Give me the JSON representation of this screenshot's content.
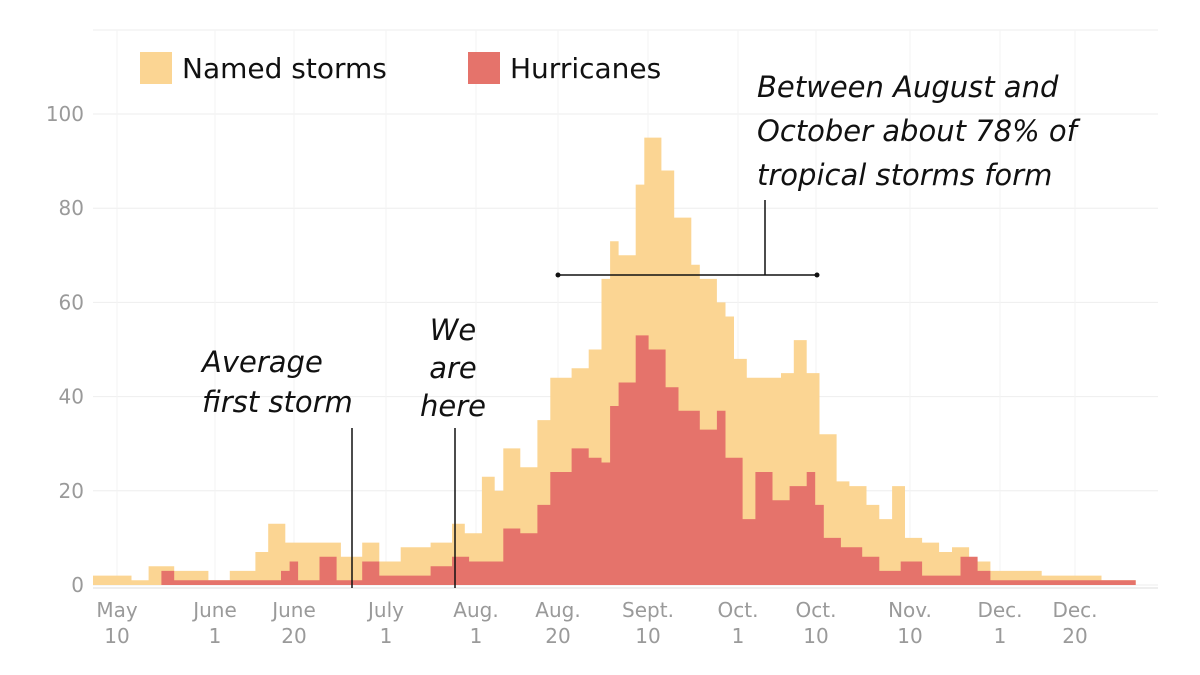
{
  "chart_data": {
    "type": "area",
    "title": "",
    "xlabel": "",
    "ylabel": "",
    "ylim": [
      0,
      100
    ],
    "yticks": [
      0,
      20,
      40,
      60,
      80,
      100
    ],
    "grid": true,
    "legend_placement": "top-left",
    "xtick_labels": [
      [
        "May",
        "10"
      ],
      [
        "June",
        "1"
      ],
      [
        "June",
        "20"
      ],
      [
        "July",
        "1"
      ],
      [
        "Aug.",
        "1"
      ],
      [
        "Aug.",
        "20"
      ],
      [
        "Sept.",
        "10"
      ],
      [
        "Oct.",
        "1"
      ],
      [
        "Oct.",
        "10"
      ],
      [
        "Nov.",
        "10"
      ],
      [
        "Dec.",
        "1"
      ],
      [
        "Dec.",
        "20"
      ]
    ],
    "series": [
      {
        "name": "Named storms",
        "color": "#fbd593",
        "points": [
          [
            "May 1",
            2
          ],
          [
            "May 10",
            1
          ],
          [
            "May 14",
            4
          ],
          [
            "May 20",
            3
          ],
          [
            "May 28",
            1
          ],
          [
            "Jun 2",
            3
          ],
          [
            "Jun 8",
            7
          ],
          [
            "Jun 11",
            13
          ],
          [
            "Jun 15",
            9
          ],
          [
            "Jun 23",
            9
          ],
          [
            "Jun 28",
            6
          ],
          [
            "Jul 3",
            9
          ],
          [
            "Jul 7",
            5
          ],
          [
            "Jul 12",
            8
          ],
          [
            "Jul 19",
            9
          ],
          [
            "Jul 24",
            13
          ],
          [
            "Jul 27",
            11
          ],
          [
            "Jul 31",
            23
          ],
          [
            "Aug 3",
            20
          ],
          [
            "Aug 5",
            29
          ],
          [
            "Aug 9",
            25
          ],
          [
            "Aug 13",
            35
          ],
          [
            "Aug 16",
            44
          ],
          [
            "Aug 21",
            46
          ],
          [
            "Aug 25",
            50
          ],
          [
            "Aug 28",
            65
          ],
          [
            "Aug 30",
            73
          ],
          [
            "Sep 1",
            70
          ],
          [
            "Sep 5",
            85
          ],
          [
            "Sep 7",
            95
          ],
          [
            "Sep 11",
            88
          ],
          [
            "Sep 14",
            78
          ],
          [
            "Sep 18",
            68
          ],
          [
            "Sep 20",
            65
          ],
          [
            "Sep 24",
            60
          ],
          [
            "Sep 26",
            57
          ],
          [
            "Sep 28",
            48
          ],
          [
            "Oct 1",
            44
          ],
          [
            "Oct 4",
            44
          ],
          [
            "Oct 9",
            45
          ],
          [
            "Oct 12",
            52
          ],
          [
            "Oct 15",
            45
          ],
          [
            "Oct 18",
            32
          ],
          [
            "Oct 22",
            22
          ],
          [
            "Oct 25",
            21
          ],
          [
            "Oct 29",
            17
          ],
          [
            "Nov 1",
            14
          ],
          [
            "Nov 4",
            21
          ],
          [
            "Nov 7",
            10
          ],
          [
            "Nov 11",
            9
          ],
          [
            "Nov 15",
            7
          ],
          [
            "Nov 18",
            8
          ],
          [
            "Nov 22",
            5
          ],
          [
            "Nov 27",
            3
          ],
          [
            "Dec 2",
            3
          ],
          [
            "Dec 9",
            2
          ],
          [
            "Dec 16",
            2
          ],
          [
            "Dec 23",
            1
          ],
          [
            "Dec 30",
            1
          ],
          [
            "Dec 31",
            0
          ]
        ]
      },
      {
        "name": "Hurricanes",
        "color": "#e5736b",
        "points": [
          [
            "May 1",
            0
          ],
          [
            "May 14",
            0
          ],
          [
            "May 17",
            3
          ],
          [
            "May 20",
            1
          ],
          [
            "May 31",
            1
          ],
          [
            "Jun 7",
            1
          ],
          [
            "Jun 14",
            3
          ],
          [
            "Jun 16",
            5
          ],
          [
            "Jun 18",
            1
          ],
          [
            "Jun 23",
            6
          ],
          [
            "Jun 27",
            1
          ],
          [
            "Jul 3",
            5
          ],
          [
            "Jul 7",
            2
          ],
          [
            "Jul 14",
            2
          ],
          [
            "Jul 19",
            4
          ],
          [
            "Jul 24",
            6
          ],
          [
            "Jul 28",
            5
          ],
          [
            "Aug 3",
            5
          ],
          [
            "Aug 5",
            12
          ],
          [
            "Aug 9",
            11
          ],
          [
            "Aug 13",
            17
          ],
          [
            "Aug 16",
            24
          ],
          [
            "Aug 21",
            29
          ],
          [
            "Aug 25",
            27
          ],
          [
            "Aug 28",
            26
          ],
          [
            "Aug 30",
            38
          ],
          [
            "Sep 1",
            43
          ],
          [
            "Sep 5",
            53
          ],
          [
            "Sep 8",
            50
          ],
          [
            "Sep 12",
            42
          ],
          [
            "Sep 15",
            37
          ],
          [
            "Sep 20",
            33
          ],
          [
            "Sep 24",
            37
          ],
          [
            "Sep 26",
            27
          ],
          [
            "Sep 30",
            14
          ],
          [
            "Oct 3",
            24
          ],
          [
            "Oct 7",
            18
          ],
          [
            "Oct 11",
            21
          ],
          [
            "Oct 15",
            24
          ],
          [
            "Oct 17",
            17
          ],
          [
            "Oct 19",
            10
          ],
          [
            "Oct 23",
            8
          ],
          [
            "Oct 28",
            6
          ],
          [
            "Nov 1",
            3
          ],
          [
            "Nov 6",
            5
          ],
          [
            "Nov 11",
            2
          ],
          [
            "Nov 18",
            2
          ],
          [
            "Nov 20",
            6
          ],
          [
            "Nov 24",
            3
          ],
          [
            "Nov 27",
            1
          ],
          [
            "Dec 2",
            1
          ],
          [
            "Dec 9",
            1
          ],
          [
            "Dec 16",
            1
          ],
          [
            "Dec 23",
            1
          ],
          [
            "Dec 30",
            1
          ],
          [
            "Dec 31",
            0
          ]
        ]
      }
    ],
    "annotations": {
      "first_storm": [
        "Average",
        "first storm"
      ],
      "we_are_here": [
        "We",
        "are",
        "here"
      ],
      "peak_season": [
        "Between August and",
        "October about 78% of",
        "tropical storms form"
      ]
    }
  }
}
